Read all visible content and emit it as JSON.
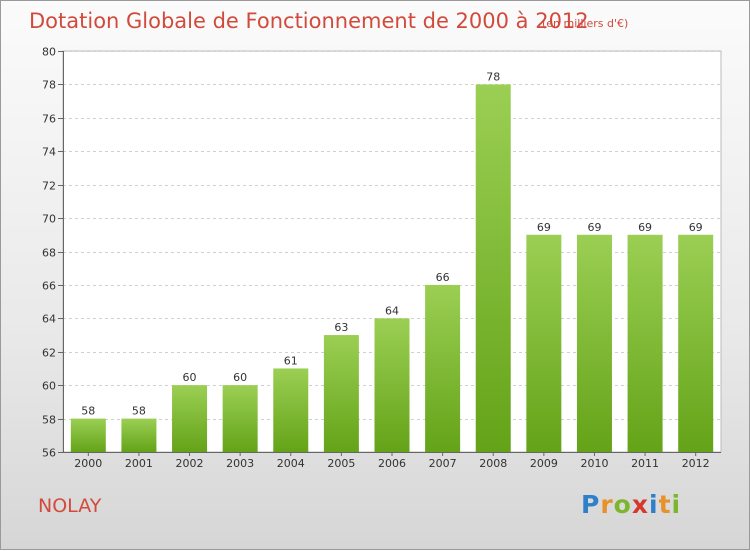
{
  "title": "Dotation Globale de Fonctionnement de 2000 à 2012",
  "unit": "(en milliers d'€)",
  "commune": "NOLAY",
  "logo": "Proxiti",
  "colors": {
    "bar_top": "#9bcf54",
    "bar_bottom": "#64a318",
    "grid": "#d0d0d0",
    "title": "#d24a3c"
  },
  "chart_data": {
    "type": "bar",
    "title": "Dotation Globale de Fonctionnement de 2000 à 2012",
    "categories": [
      "2000",
      "2001",
      "2002",
      "2003",
      "2004",
      "2005",
      "2006",
      "2007",
      "2008",
      "2009",
      "2010",
      "2011",
      "2012"
    ],
    "values": [
      58,
      58,
      60,
      60,
      61,
      63,
      64,
      66,
      78,
      69,
      69,
      69,
      69
    ],
    "ylim": [
      56,
      80
    ],
    "yticks": [
      56,
      58,
      60,
      62,
      64,
      66,
      68,
      70,
      72,
      74,
      76,
      78,
      80
    ],
    "grid": true,
    "xlabel": "",
    "ylabel": ""
  }
}
